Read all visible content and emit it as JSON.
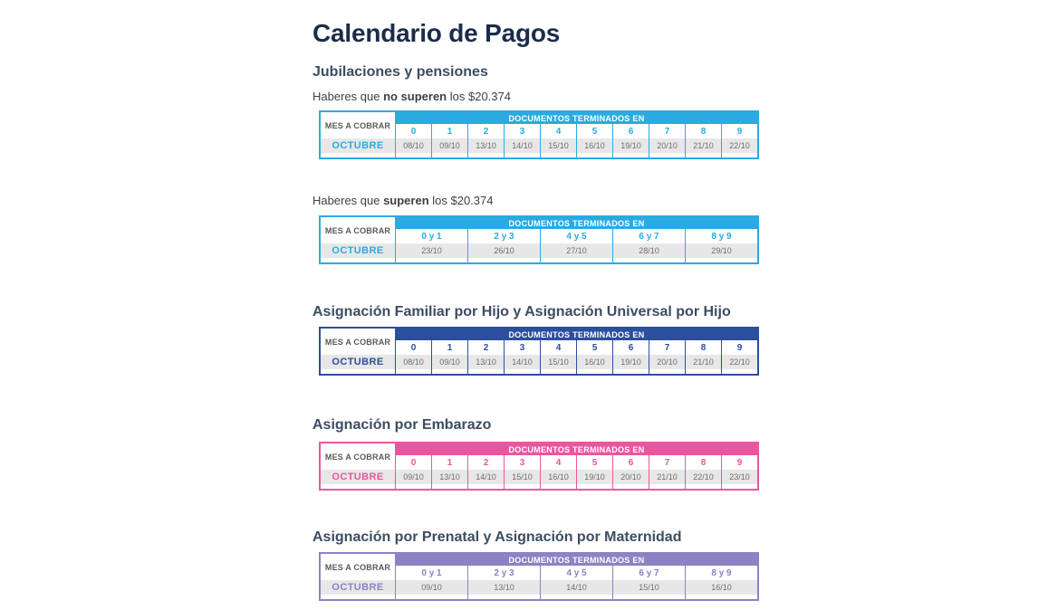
{
  "page": {
    "title": "Calendario de Pagos"
  },
  "labels": {
    "mes_a_cobrar": "MES A COBRAR",
    "documentos_terminados": "DOCUMENTOS TERMINADOS EN"
  },
  "sections": {
    "jubilaciones": {
      "heading": "Jubilaciones y pensiones"
    },
    "sub_no_superen": {
      "pre": "Haberes que ",
      "bold": "no superen",
      "post": " los $20.374"
    },
    "sub_superen": {
      "pre": "Haberes que ",
      "bold": "superen",
      "post": " los $20.374"
    },
    "afh": {
      "heading": "Asignación Familiar por Hijo y Asignación Universal por Hijo"
    },
    "embarazo": {
      "heading": "Asignación por Embarazo"
    },
    "prenatal": {
      "heading": "Asignación por Prenatal y Asignación por Maternidad"
    }
  },
  "colors": {
    "cyan_accent": "#29abe2",
    "dark_blue_accent": "#2b4f9e",
    "pink_accent": "#eb559f",
    "purple_accent": "#8d82c3",
    "row_gray": "#e7e7e8",
    "date_text": "#6d6e71",
    "title_navy": "#1a2c49"
  },
  "tables": [
    {
      "name": "jubilaciones-no-superen",
      "accent_color": "#29abe2",
      "month": "OCTUBRE",
      "columns": [
        "0",
        "1",
        "2",
        "3",
        "4",
        "5",
        "6",
        "7",
        "8",
        "9"
      ],
      "dates": [
        "08/10",
        "09/10",
        "13/10",
        "14/10",
        "15/10",
        "16/10",
        "19/10",
        "20/10",
        "21/10",
        "22/10"
      ]
    },
    {
      "name": "jubilaciones-superen",
      "accent_color": "#29abe2",
      "month": "OCTUBRE",
      "columns": [
        "0 y 1",
        "2 y 3",
        "4 y 5",
        "6 y 7",
        "8 y 9"
      ],
      "dates": [
        "23/10",
        "26/10",
        "27/10",
        "28/10",
        "29/10"
      ]
    },
    {
      "name": "asignacion-familiar-y-universal-por-hijo",
      "accent_color": "#2b4f9e",
      "month": "OCTUBRE",
      "columns": [
        "0",
        "1",
        "2",
        "3",
        "4",
        "5",
        "6",
        "7",
        "8",
        "9"
      ],
      "dates": [
        "08/10",
        "09/10",
        "13/10",
        "14/10",
        "15/10",
        "16/10",
        "19/10",
        "20/10",
        "21/10",
        "22/10"
      ]
    },
    {
      "name": "asignacion-por-embarazo",
      "accent_color": "#eb559f",
      "month": "OCTUBRE",
      "columns": [
        "0",
        "1",
        "2",
        "3",
        "4",
        "5",
        "6",
        "7",
        "8",
        "9"
      ],
      "dates": [
        "09/10",
        "13/10",
        "14/10",
        "15/10",
        "16/10",
        "19/10",
        "20/10",
        "21/10",
        "22/10",
        "23/10"
      ]
    },
    {
      "name": "asignacion-prenatal-y-maternidad",
      "accent_color": "#8d82c3",
      "month": "OCTUBRE",
      "columns": [
        "0 y 1",
        "2 y 3",
        "4 y 5",
        "6 y 7",
        "8 y 9"
      ],
      "dates": [
        "09/10",
        "13/10",
        "14/10",
        "15/10",
        "16/10"
      ]
    }
  ]
}
